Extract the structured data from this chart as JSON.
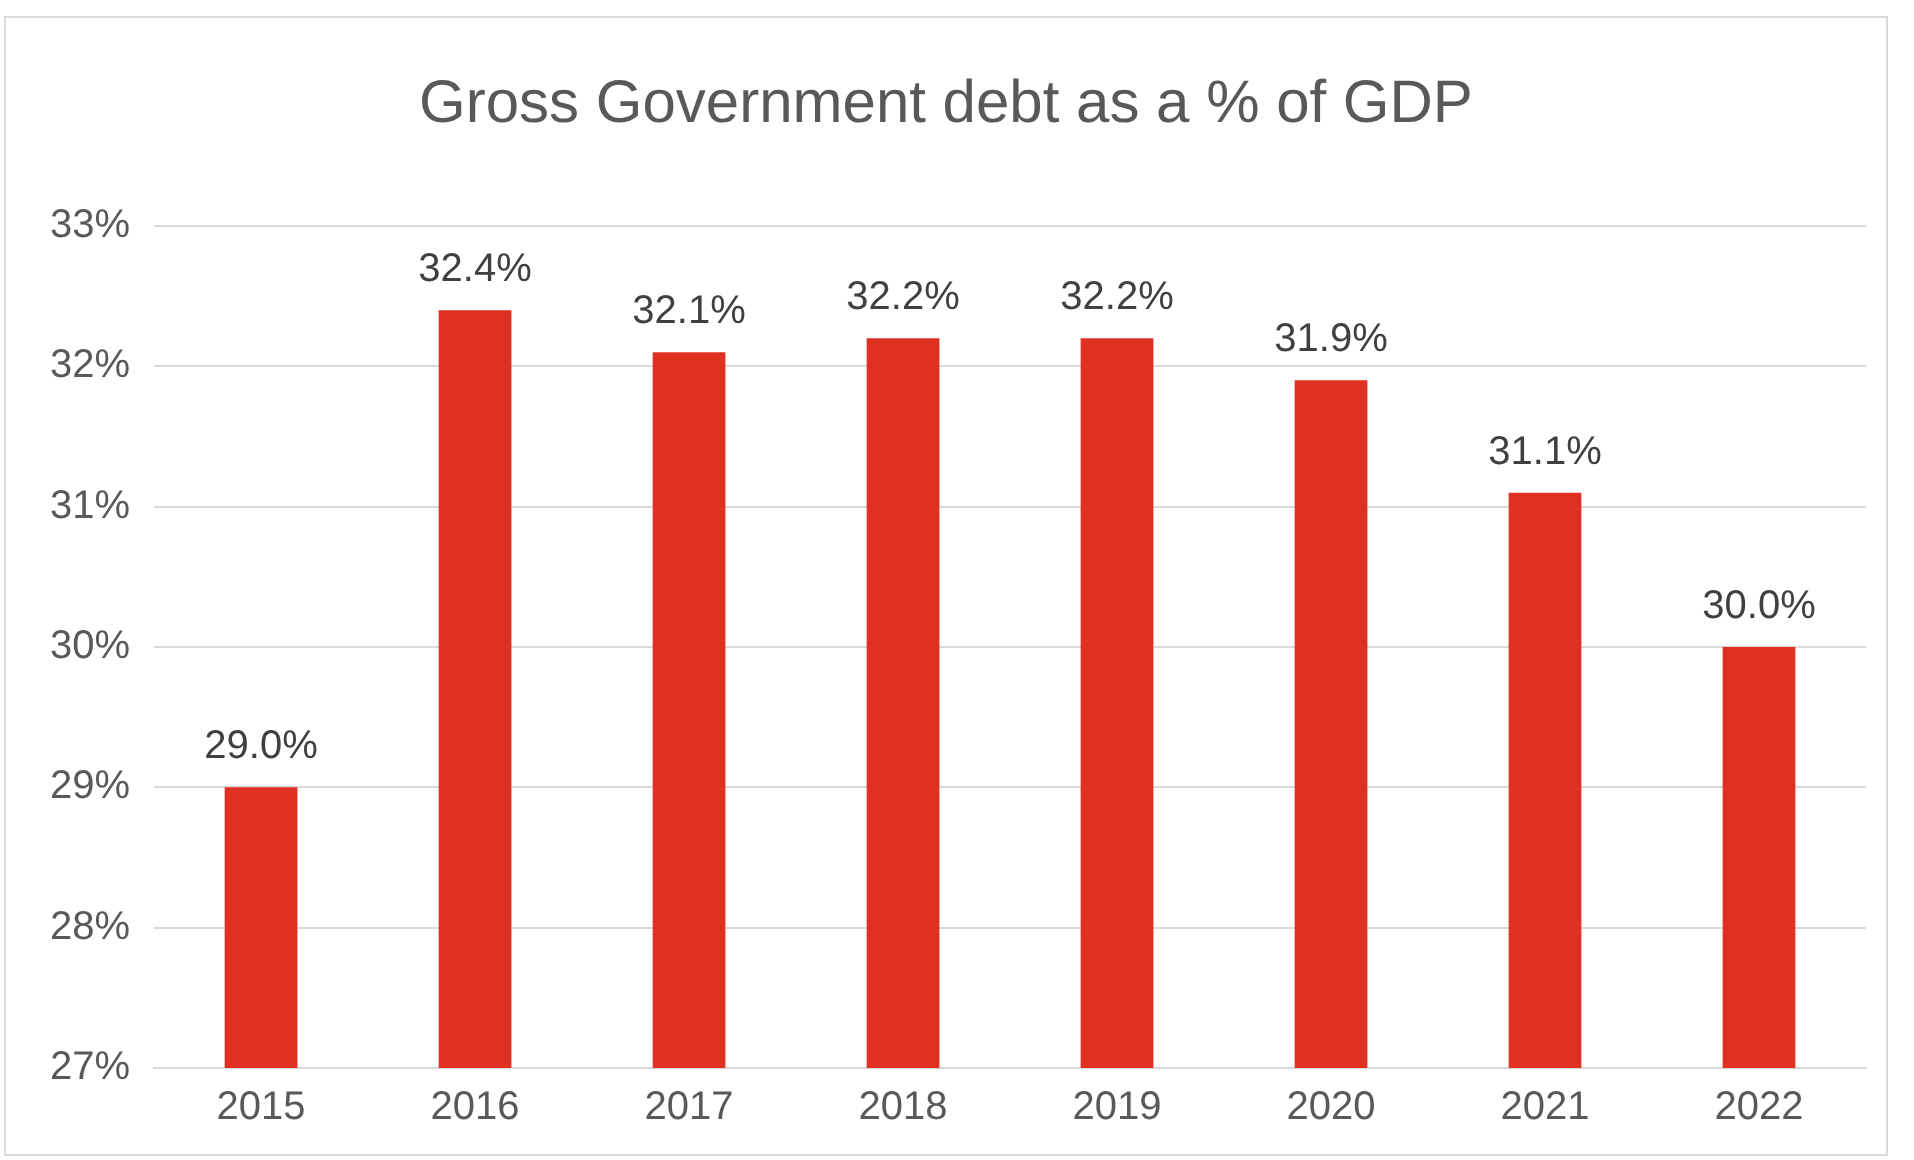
{
  "chart_data": {
    "type": "bar",
    "title": "Gross Government debt as a % of GDP",
    "categories": [
      "2015",
      "2016",
      "2017",
      "2018",
      "2019",
      "2020",
      "2021",
      "2022"
    ],
    "values": [
      29.0,
      32.4,
      32.1,
      32.2,
      32.2,
      31.9,
      31.1,
      30.0
    ],
    "value_labels": [
      "29.0%",
      "32.4%",
      "32.1%",
      "32.2%",
      "32.2%",
      "31.9%",
      "31.1%",
      "30.0%"
    ],
    "color": "#e03022",
    "ylim": [
      27,
      33
    ],
    "yticks": [
      {
        "value": 27,
        "label": "27%"
      },
      {
        "value": 28,
        "label": "28%"
      },
      {
        "value": 29,
        "label": "29%"
      },
      {
        "value": 30,
        "label": "30%"
      },
      {
        "value": 31,
        "label": "31%"
      },
      {
        "value": 32,
        "label": "32%"
      },
      {
        "value": 33,
        "label": "33%"
      }
    ],
    "grid": "y",
    "legend": false
  }
}
